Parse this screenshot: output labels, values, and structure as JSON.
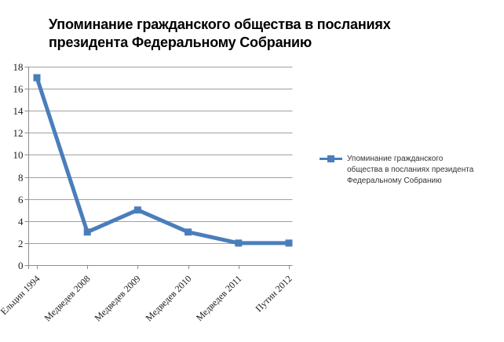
{
  "header": {
    "title_lines": [
      "Упоминание гражданского общества в посланиях",
      "президента Федеральному Собранию"
    ]
  },
  "legend": {
    "lines": [
      "Упоминание гражданского",
      "общества в посланиях президента",
      "Федеральному Собранию"
    ]
  },
  "chart_data": {
    "type": "line",
    "title": "Упоминание гражданского общества в посланиях президента Федеральному Собранию",
    "categories": [
      "Ельцин 1994",
      "Медведев 2008",
      "Медведев 2009",
      "Медведев 2010",
      "Медведев 2011",
      "Путин 2012"
    ],
    "series": [
      {
        "name": "Упоминание гражданского общества в посланиях президента Федеральному Собранию",
        "values": [
          17,
          3,
          5,
          3,
          2,
          2
        ]
      }
    ],
    "xlabel": "",
    "ylabel": "",
    "ylim": [
      0,
      18
    ],
    "ytick_step": 2,
    "grid": true,
    "legend_position": "right",
    "marker": "square",
    "colors": {
      "series": "#4a7ebb",
      "gridline": "#a0a0a0",
      "axis": "#8c8c8c",
      "tick_label": "#1d1d1d",
      "title": "#000000",
      "legend_text": "#333333",
      "background": "#ffffff"
    }
  }
}
